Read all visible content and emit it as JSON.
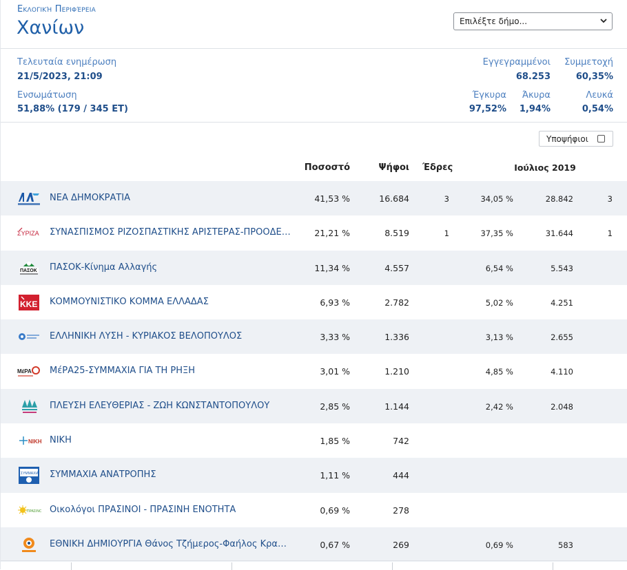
{
  "header": {
    "region_label": "Εκλογική Περιφέρεια",
    "region_name": "Χανίων",
    "muni_select_placeholder": "Επιλέξτε δήμο..."
  },
  "stats": {
    "last_update_label": "Τελευταία ενημέρωση",
    "last_update_value": "21/5/2023, 21:09",
    "integration_label": "Ενσωμάτωση",
    "integration_value": "51,88% (179 / 345 ΕΤ)",
    "registered_label": "Εγγεγραμμένοι",
    "registered_value": "68.253",
    "turnout_label": "Συμμετοχή",
    "turnout_value": "60,35%",
    "valid_label": "Έγκυρα",
    "valid_value": "97,52%",
    "invalid_label": "Άκυρα",
    "invalid_value": "1,94%",
    "blank_label": "Λευκά",
    "blank_value": "0,54%"
  },
  "candidates_toggle_label": "Υποψήφιοι",
  "columns": {
    "percent": "Ποσοστό",
    "votes": "Ψήφοι",
    "seats": "Έδρες",
    "prev_election": "Ιούλιος 2019"
  },
  "parties": [
    {
      "name": "ΝΕΑ ΔΗΜΟΚΡΑΤΙΑ",
      "logo": "nd-logo",
      "pct": "41,53 %",
      "votes": "16.684",
      "seats": "3",
      "pct2019": "34,05 %",
      "votes2019": "28.842",
      "seats2019": "3"
    },
    {
      "name": "ΣΥΝΑΣΠΙΣΜΟΣ ΡΙΖΟΣΠΑΣΤΙΚΗΣ ΑΡΙΣΤΕΡΑΣ-ΠΡΟΟΔΕΥΤΙΚΗ ΣΥΜΜΑΧΙΑ",
      "logo": "syriza-logo",
      "pct": "21,21 %",
      "votes": "8.519",
      "seats": "1",
      "pct2019": "37,35 %",
      "votes2019": "31.644",
      "seats2019": "1"
    },
    {
      "name": "ΠΑΣΟΚ-Κίνημα Αλλαγής",
      "logo": "pasok-logo",
      "pct": "11,34 %",
      "votes": "4.557",
      "seats": "",
      "pct2019": "6,54 %",
      "votes2019": "5.543",
      "seats2019": ""
    },
    {
      "name": "ΚΟΜΜΟΥΝΙΣΤΙΚΟ ΚΟΜΜΑ ΕΛΛΑΔΑΣ",
      "logo": "kke-logo",
      "pct": "6,93 %",
      "votes": "2.782",
      "seats": "",
      "pct2019": "5,02 %",
      "votes2019": "4.251",
      "seats2019": ""
    },
    {
      "name": "ΕΛΛΗΝΙΚΗ ΛΥΣΗ - ΚΥΡΙΑΚΟΣ ΒΕΛΟΠΟΥΛΟΣ",
      "logo": "elliniki-lysi-logo",
      "pct": "3,33 %",
      "votes": "1.336",
      "seats": "",
      "pct2019": "3,13 %",
      "votes2019": "2.655",
      "seats2019": ""
    },
    {
      "name": "ΜέΡΑ25-ΣΥΜΜΑΧΙΑ ΓΙΑ ΤΗ ΡΗΞΗ",
      "logo": "mera25-logo",
      "pct": "3,01 %",
      "votes": "1.210",
      "seats": "",
      "pct2019": "4,85 %",
      "votes2019": "4.110",
      "seats2019": ""
    },
    {
      "name": "ΠΛΕΥΣΗ ΕΛΕΥΘΕΡΙΑΣ - ΖΩΗ ΚΩΝΣΤΑΝΤΟΠΟΥΛΟΥ",
      "logo": "plefsi-logo",
      "pct": "2,85 %",
      "votes": "1.144",
      "seats": "",
      "pct2019": "2,42 %",
      "votes2019": "2.048",
      "seats2019": ""
    },
    {
      "name": "ΝΙΚΗ",
      "logo": "niki-logo",
      "pct": "1,85 %",
      "votes": "742",
      "seats": "",
      "pct2019": "",
      "votes2019": "",
      "seats2019": ""
    },
    {
      "name": "ΣΥΜΜΑΧΙΑ ΑΝΑΤΡΟΠΗΣ",
      "logo": "symmaxia-anatropis-logo",
      "pct": "1,11 %",
      "votes": "444",
      "seats": "",
      "pct2019": "",
      "votes2019": "",
      "seats2019": ""
    },
    {
      "name": "Οικολόγοι ΠΡΑΣΙΝΟΙ - ΠΡΑΣΙΝΗ ΕΝΟΤΗΤΑ",
      "logo": "prasinoi-logo",
      "pct": "0,69 %",
      "votes": "278",
      "seats": "",
      "pct2019": "",
      "votes2019": "",
      "seats2019": ""
    },
    {
      "name": "ΕΘΝΙΚΗ ΔΗΜΙΟΥΡΓΙΑ Θάνος Τζήμερος-Φαήλος Κραναιδιώτης",
      "logo": "ethniki-dimiourgia-logo",
      "pct": "0,67 %",
      "votes": "269",
      "seats": "",
      "pct2019": "0,69 %",
      "votes2019": "583",
      "seats2019": ""
    }
  ]
}
